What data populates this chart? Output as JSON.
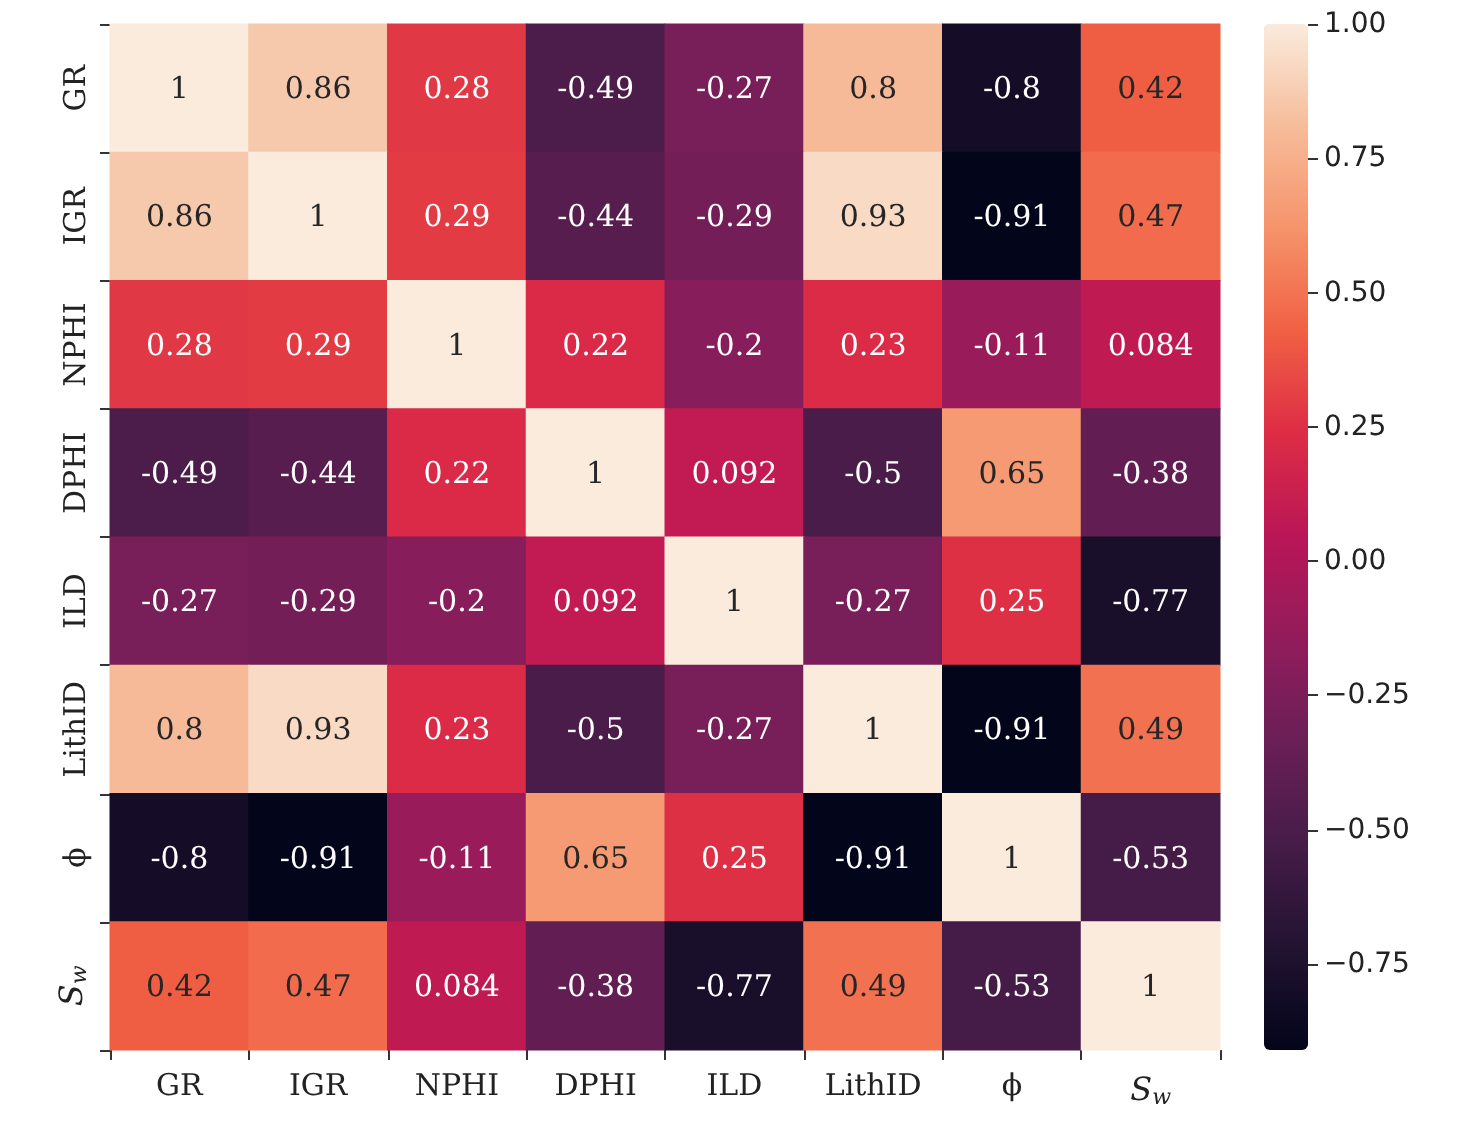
{
  "chart_data": {
    "type": "heatmap",
    "categories": [
      "GR",
      "IGR",
      "NPHI",
      "DPHI",
      "ILD",
      "LithID",
      "ϕ",
      "S$_{w}$"
    ],
    "y_categories": [
      "GR",
      "IGR",
      "NPHI",
      "DPHI",
      "ILD",
      "LithID",
      "ϕ",
      "S$_{w}$"
    ],
    "cells": [
      [
        1,
        0.86,
        0.28,
        -0.49,
        -0.27,
        0.8,
        -0.8,
        0.42
      ],
      [
        0.86,
        1,
        0.29,
        -0.44,
        -0.29,
        0.93,
        -0.91,
        0.47
      ],
      [
        0.28,
        0.29,
        1,
        0.22,
        -0.2,
        0.23,
        -0.11,
        0.084
      ],
      [
        -0.49,
        -0.44,
        0.22,
        1,
        0.092,
        -0.5,
        0.65,
        -0.38
      ],
      [
        -0.27,
        -0.29,
        -0.2,
        0.092,
        1,
        -0.27,
        0.25,
        -0.77
      ],
      [
        0.8,
        0.93,
        0.23,
        -0.5,
        -0.27,
        1,
        -0.91,
        0.49
      ],
      [
        -0.8,
        -0.91,
        -0.11,
        0.65,
        0.25,
        -0.91,
        1,
        -0.53
      ],
      [
        0.42,
        0.47,
        0.084,
        -0.38,
        -0.77,
        0.49,
        -0.53,
        1
      ]
    ],
    "data_labels": true,
    "clim": [
      -0.91,
      1
    ],
    "cticks": [
      {
        "value": 1,
        "label": "1.00"
      },
      {
        "value": 0.75,
        "label": "0.75"
      },
      {
        "value": 0.5,
        "label": "0.50"
      },
      {
        "value": 0.25,
        "label": "0.25"
      },
      {
        "value": 0,
        "label": "0.00"
      },
      {
        "value": -0.25,
        "label": "−0.25"
      },
      {
        "value": -0.5,
        "label": "−0.50"
      },
      {
        "value": -0.75,
        "label": "−0.75"
      }
    ]
  }
}
